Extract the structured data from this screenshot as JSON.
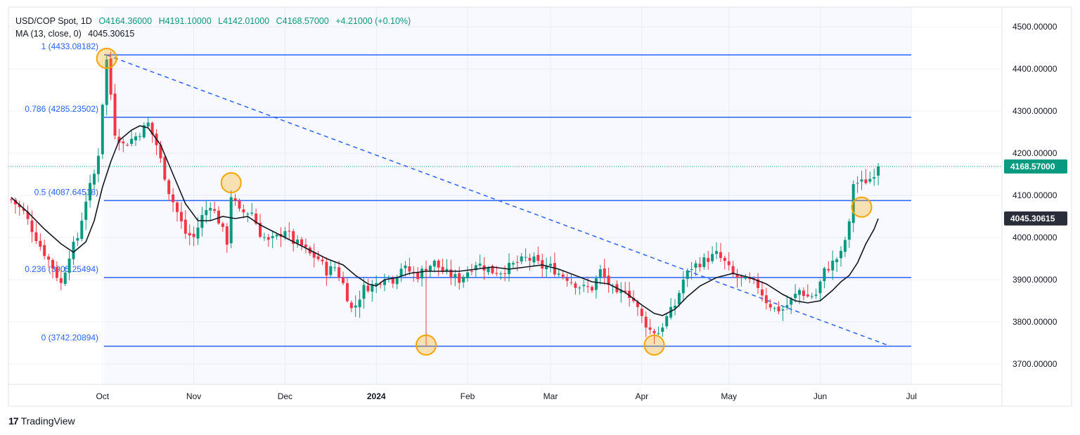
{
  "header": {
    "symbol": "USD/COP Spot, 1D",
    "open": "O4164.36000",
    "high": "H4191.10000",
    "low": "L4142.01000",
    "close": "C4168.57000",
    "change": "+4.21000 (+0.10%)",
    "ma_label": "MA (13, close, 0)",
    "ma_value": "4045.30615"
  },
  "brand": {
    "logo": "17",
    "name": "TradingView"
  },
  "colors": {
    "up": "#089981",
    "down": "#f23645",
    "fib": "#2962ff",
    "ma": "#131722",
    "marker": "#f7a400"
  },
  "chart_data": {
    "type": "candlestick",
    "y_axis": {
      "range": [
        3660,
        4530
      ],
      "ticks": [
        "4500.00000",
        "4400.00000",
        "4300.00000",
        "4200.00000",
        "4100.00000",
        "4000.00000",
        "3900.00000",
        "3800.00000",
        "3700.00000"
      ],
      "tick_values": [
        4500,
        4400,
        4300,
        4200,
        4100,
        4000,
        3900,
        3800,
        3700
      ],
      "last_price_label": "4168.57000",
      "last_price": 4168.57,
      "ma_price_label": "4045.30615",
      "ma_price": 4045.30615
    },
    "x_axis": {
      "labels": [
        "Oct",
        "Nov",
        "Dec",
        "2024",
        "Feb",
        "Mar",
        "Apr",
        "May",
        "Jun",
        "Jul"
      ],
      "label_bars": [
        22,
        44,
        66,
        88,
        110,
        130,
        152,
        173,
        195,
        217
      ]
    },
    "fib_levels": [
      {
        "label": "1 (4433.08182)",
        "value": 4433.08182
      },
      {
        "label": "0.786 (4285.23502)",
        "value": 4285.23502
      },
      {
        "label": "0.5 (4087.64518)",
        "value": 4087.64518
      },
      {
        "label": "0.236 (3905.25494)",
        "value": 3905.25494
      },
      {
        "label": "0 (3742.20894)",
        "value": 3742.20894
      }
    ],
    "trendline": {
      "start_bar": 23,
      "start_value": 4433,
      "end_bar": 212,
      "end_value": 3742
    },
    "markers": [
      {
        "bar": 23,
        "value": 4425
      },
      {
        "bar": 53,
        "value": 4130
      },
      {
        "bar": 100,
        "value": 3745
      },
      {
        "bar": 155,
        "value": 3745
      },
      {
        "bar": 205,
        "value": 4072
      }
    ],
    "anchors": [
      [
        0,
        4090
      ],
      [
        3,
        4060
      ],
      [
        7,
        3980
      ],
      [
        10,
        3930
      ],
      [
        12,
        3890
      ],
      [
        14,
        3960
      ],
      [
        16,
        4000
      ],
      [
        18,
        4090
      ],
      [
        20,
        4150
      ],
      [
        21,
        4200
      ],
      [
        22,
        4320
      ],
      [
        23,
        4420
      ],
      [
        24,
        4340
      ],
      [
        25,
        4250
      ],
      [
        27,
        4220
      ],
      [
        30,
        4240
      ],
      [
        33,
        4270
      ],
      [
        35,
        4220
      ],
      [
        38,
        4110
      ],
      [
        40,
        4060
      ],
      [
        42,
        4010
      ],
      [
        44,
        4000
      ],
      [
        46,
        4050
      ],
      [
        48,
        4080
      ],
      [
        50,
        4040
      ],
      [
        52,
        3990
      ],
      [
        53,
        4100
      ],
      [
        55,
        4060
      ],
      [
        58,
        4060
      ],
      [
        60,
        4010
      ],
      [
        62,
        3990
      ],
      [
        64,
        4000
      ],
      [
        66,
        4020
      ],
      [
        68,
        3990
      ],
      [
        70,
        3980
      ],
      [
        72,
        3960
      ],
      [
        74,
        3950
      ],
      [
        76,
        3920
      ],
      [
        78,
        3930
      ],
      [
        80,
        3890
      ],
      [
        82,
        3830
      ],
      [
        83,
        3840
      ],
      [
        85,
        3880
      ],
      [
        88,
        3890
      ],
      [
        90,
        3910
      ],
      [
        92,
        3900
      ],
      [
        94,
        3930
      ],
      [
        96,
        3920
      ],
      [
        98,
        3910
      ],
      [
        100,
        3930
      ],
      [
        102,
        3940
      ],
      [
        104,
        3920
      ],
      [
        106,
        3910
      ],
      [
        108,
        3900
      ],
      [
        110,
        3920
      ],
      [
        112,
        3940
      ],
      [
        114,
        3930
      ],
      [
        116,
        3920
      ],
      [
        118,
        3920
      ],
      [
        120,
        3930
      ],
      [
        122,
        3940
      ],
      [
        124,
        3950
      ],
      [
        126,
        3945
      ],
      [
        128,
        3930
      ],
      [
        130,
        3930
      ],
      [
        132,
        3915
      ],
      [
        134,
        3905
      ],
      [
        136,
        3890
      ],
      [
        138,
        3880
      ],
      [
        140,
        3880
      ],
      [
        142,
        3920
      ],
      [
        144,
        3890
      ],
      [
        146,
        3860
      ],
      [
        148,
        3880
      ],
      [
        150,
        3850
      ],
      [
        152,
        3810
      ],
      [
        154,
        3780
      ],
      [
        156,
        3775
      ],
      [
        158,
        3810
      ],
      [
        160,
        3840
      ],
      [
        162,
        3900
      ],
      [
        164,
        3930
      ],
      [
        166,
        3940
      ],
      [
        168,
        3950
      ],
      [
        170,
        3960
      ],
      [
        172,
        3940
      ],
      [
        174,
        3910
      ],
      [
        176,
        3900
      ],
      [
        178,
        3895
      ],
      [
        180,
        3885
      ],
      [
        182,
        3850
      ],
      [
        184,
        3830
      ],
      [
        186,
        3830
      ],
      [
        188,
        3850
      ],
      [
        190,
        3875
      ],
      [
        192,
        3860
      ],
      [
        194,
        3865
      ],
      [
        196,
        3920
      ],
      [
        198,
        3940
      ],
      [
        200,
        3960
      ],
      [
        202,
        4030
      ],
      [
        203,
        4130
      ],
      [
        205,
        4130
      ],
      [
        207,
        4140
      ],
      [
        209,
        4168
      ]
    ],
    "ma_anchors": [
      [
        0,
        4095
      ],
      [
        4,
        4060
      ],
      [
        8,
        4020
      ],
      [
        12,
        3985
      ],
      [
        15,
        3965
      ],
      [
        18,
        3990
      ],
      [
        20,
        4040
      ],
      [
        22,
        4120
      ],
      [
        24,
        4180
      ],
      [
        26,
        4230
      ],
      [
        29,
        4255
      ],
      [
        31,
        4265
      ],
      [
        33,
        4260
      ],
      [
        36,
        4220
      ],
      [
        39,
        4150
      ],
      [
        42,
        4080
      ],
      [
        45,
        4040
      ],
      [
        48,
        4040
      ],
      [
        51,
        4050
      ],
      [
        54,
        4045
      ],
      [
        57,
        4050
      ],
      [
        60,
        4030
      ],
      [
        64,
        4010
      ],
      [
        68,
        3990
      ],
      [
        72,
        3970
      ],
      [
        76,
        3950
      ],
      [
        80,
        3935
      ],
      [
        83,
        3910
      ],
      [
        86,
        3890
      ],
      [
        88,
        3885
      ],
      [
        90,
        3900
      ],
      [
        93,
        3905
      ],
      [
        96,
        3915
      ],
      [
        100,
        3920
      ],
      [
        104,
        3920
      ],
      [
        108,
        3920
      ],
      [
        112,
        3925
      ],
      [
        116,
        3930
      ],
      [
        120,
        3925
      ],
      [
        124,
        3930
      ],
      [
        128,
        3935
      ],
      [
        132,
        3925
      ],
      [
        136,
        3910
      ],
      [
        140,
        3895
      ],
      [
        144,
        3890
      ],
      [
        148,
        3870
      ],
      [
        152,
        3840
      ],
      [
        155,
        3820
      ],
      [
        157,
        3815
      ],
      [
        160,
        3830
      ],
      [
        163,
        3860
      ],
      [
        166,
        3885
      ],
      [
        170,
        3905
      ],
      [
        174,
        3915
      ],
      [
        178,
        3905
      ],
      [
        182,
        3890
      ],
      [
        186,
        3865
      ],
      [
        189,
        3850
      ],
      [
        192,
        3845
      ],
      [
        195,
        3850
      ],
      [
        198,
        3875
      ],
      [
        200,
        3895
      ],
      [
        202,
        3910
      ],
      [
        204,
        3940
      ],
      [
        206,
        3985
      ],
      [
        208,
        4020
      ],
      [
        209,
        4045
      ]
    ]
  }
}
